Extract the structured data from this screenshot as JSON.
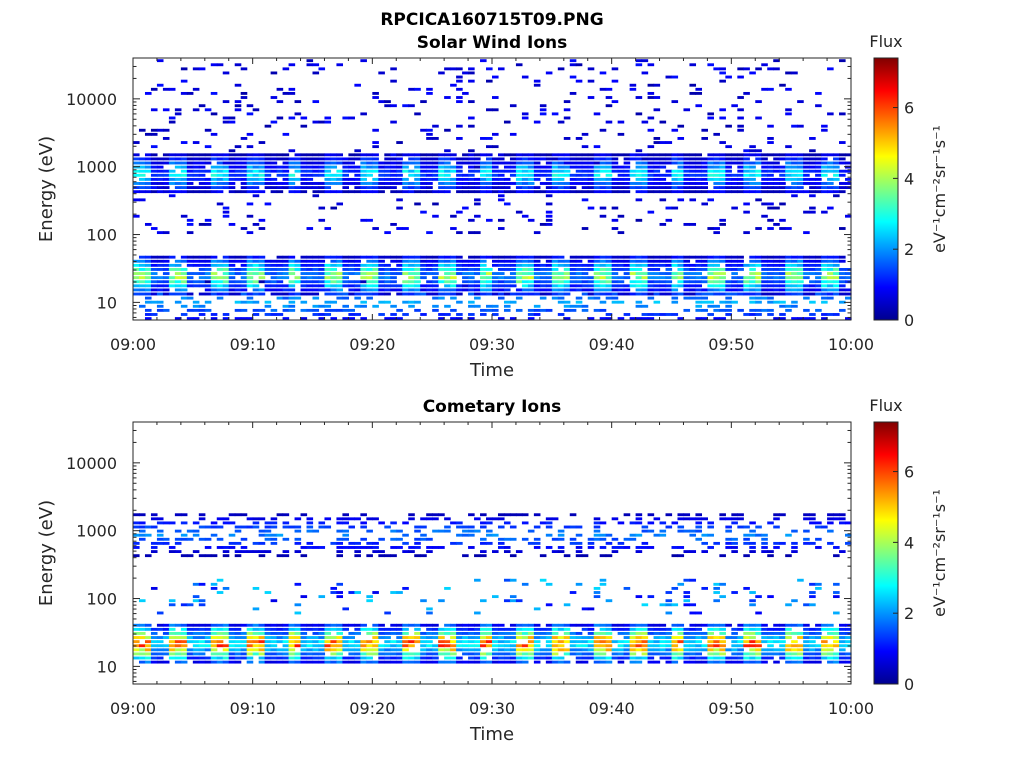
{
  "figure": {
    "title": "RPCICA160715T09.PNG"
  },
  "chart_data": [
    {
      "type": "heatmap",
      "title": "Solar Wind Ions",
      "xlabel": "Time",
      "ylabel": "Energy (eV)",
      "xticks": [
        "09:00",
        "09:10",
        "09:20",
        "09:30",
        "09:40",
        "09:50",
        "10:00"
      ],
      "xlim_minutes": [
        0,
        60
      ],
      "yticks": [
        "10",
        "100",
        "1000",
        "10000"
      ],
      "ylim": [
        5.5,
        40000
      ],
      "yscale": "log",
      "colorbar": {
        "label": "Flux",
        "unit": "eV⁻¹cm⁻²sr⁻¹s⁻¹",
        "ticks": [
          "0",
          "2",
          "4",
          "6"
        ],
        "range": [
          0,
          7.4
        ],
        "colormap": "jet"
      },
      "features": [
        {
          "energy_center": 25,
          "level": 4.3,
          "period_min": 3.2,
          "note": "periodic band"
        },
        {
          "energy_center": 800,
          "level": 3.0,
          "period_min": 3.2,
          "note": "periodic band"
        },
        {
          "energy_center": 10,
          "level": 2.3,
          "note": "sparse low-energy counts"
        },
        {
          "energy_range": [
            100,
            40000
          ],
          "level": 0.6,
          "note": "background noise"
        }
      ]
    },
    {
      "type": "heatmap",
      "title": "Cometary Ions",
      "xlabel": "Time",
      "ylabel": "Energy (eV)",
      "xticks": [
        "09:00",
        "09:10",
        "09:20",
        "09:30",
        "09:40",
        "09:50",
        "10:00"
      ],
      "xlim_minutes": [
        0,
        60
      ],
      "yticks": [
        "10",
        "100",
        "1000",
        "10000"
      ],
      "ylim": [
        5.5,
        40000
      ],
      "yscale": "log",
      "colorbar": {
        "label": "Flux",
        "unit": "eV⁻¹cm⁻²sr⁻¹s⁻¹",
        "ticks": [
          "0",
          "2",
          "4",
          "6"
        ],
        "range": [
          0,
          7.4
        ],
        "colormap": "jet"
      },
      "features": [
        {
          "energy_center": 22,
          "level": 6.3,
          "period_min": 3.2,
          "note": "intense periodic band"
        },
        {
          "energy_center": 900,
          "level": 2.0,
          "note": "sparse counts"
        },
        {
          "energy_range": [
            60,
            200
          ],
          "level": 1.5,
          "note": "sparse counts"
        }
      ]
    }
  ]
}
